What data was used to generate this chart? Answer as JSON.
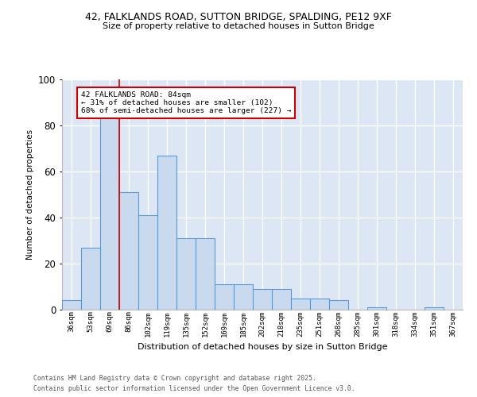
{
  "title_line1": "42, FALKLANDS ROAD, SUTTON BRIDGE, SPALDING, PE12 9XF",
  "title_line2": "Size of property relative to detached houses in Sutton Bridge",
  "xlabel": "Distribution of detached houses by size in Sutton Bridge",
  "ylabel": "Number of detached properties",
  "categories": [
    "36sqm",
    "53sqm",
    "69sqm",
    "86sqm",
    "102sqm",
    "119sqm",
    "135sqm",
    "152sqm",
    "169sqm",
    "185sqm",
    "202sqm",
    "218sqm",
    "235sqm",
    "251sqm",
    "268sqm",
    "285sqm",
    "301sqm",
    "318sqm",
    "334sqm",
    "351sqm",
    "367sqm"
  ],
  "values": [
    4,
    27,
    84,
    51,
    41,
    67,
    31,
    31,
    11,
    11,
    9,
    9,
    5,
    5,
    4,
    0,
    1,
    0,
    0,
    1,
    0
  ],
  "bar_color": "#c9d9ee",
  "bar_edge_color": "#5b9bd5",
  "bg_color": "#dce6f5",
  "grid_color": "#ffffff",
  "annotation_text": "42 FALKLANDS ROAD: 84sqm\n← 31% of detached houses are smaller (102)\n68% of semi-detached houses are larger (227) →",
  "annotation_border_color": "#cc0000",
  "red_line_x": 2.5,
  "ylim": [
    0,
    100
  ],
  "yticks": [
    0,
    20,
    40,
    60,
    80,
    100
  ],
  "footer_line1": "Contains HM Land Registry data © Crown copyright and database right 2025.",
  "footer_line2": "Contains public sector information licensed under the Open Government Licence v3.0."
}
